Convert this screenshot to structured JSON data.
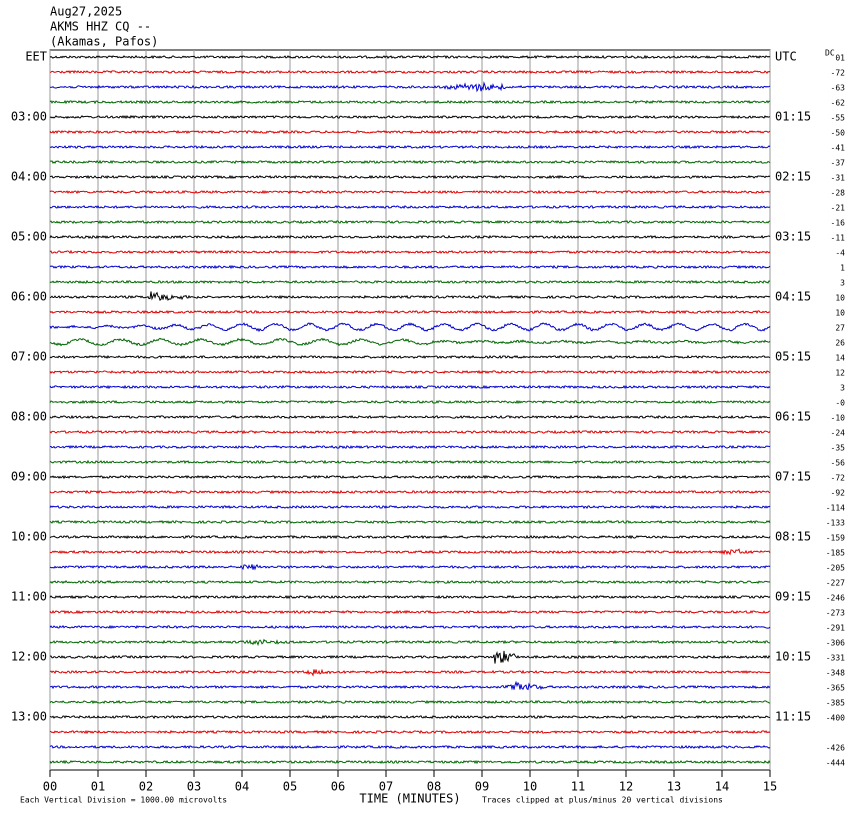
{
  "header": {
    "date": "Aug27,2025",
    "station": "AKMS HHZ CQ --",
    "location": "(Akamas, Pafos)"
  },
  "left_labels": [
    "EET",
    "03:00",
    "04:00",
    "05:00",
    "06:00",
    "07:00",
    "08:00",
    "09:00",
    "10:00",
    "11:00",
    "12:00",
    "13:00"
  ],
  "right_labels": [
    "UTC",
    "01:15",
    "02:15",
    "03:15",
    "04:15",
    "05:15",
    "06:15",
    "07:15",
    "08:15",
    "09:15",
    "10:15",
    "11:15"
  ],
  "dc_header": "DC",
  "dc_values": [
    "01",
    "-72",
    "-63",
    "-62",
    "-55",
    "-50",
    "-41",
    "-37",
    "-31",
    "-28",
    "-21",
    "-16",
    "-11",
    "-4",
    "1",
    "3",
    "10",
    "10",
    "27",
    "26",
    "14",
    "12",
    "3",
    "-0",
    "-10",
    "-24",
    "-35",
    "-56",
    "-72",
    "-92",
    "-114",
    "-133",
    "-159",
    "-185",
    "-205",
    "-227",
    "-246",
    "-273",
    "-291",
    "-306",
    "-331",
    "-348",
    "-365",
    "-385",
    "-400",
    null,
    "-426",
    "-444"
  ],
  "x_axis": {
    "title": "TIME (MINUTES)",
    "ticks": [
      "00",
      "01",
      "02",
      "03",
      "04",
      "05",
      "06",
      "07",
      "08",
      "09",
      "10",
      "11",
      "12",
      "13",
      "14",
      "15"
    ]
  },
  "footer": {
    "left": "Each Vertical Division = 1000.00 microvolts",
    "right": "Traces clipped at plus/minus 20 vertical divisions"
  }
}
